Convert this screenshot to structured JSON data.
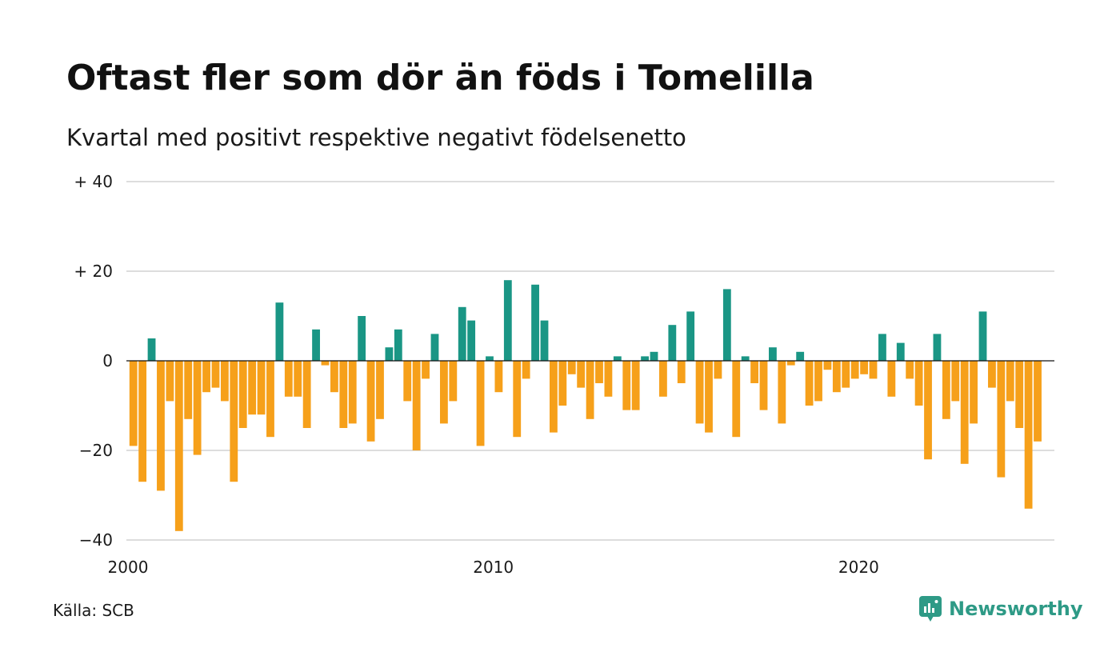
{
  "title": "Oftast fler som dör än föds i Tomelilla",
  "subtitle": "Kvartal med positivt respektive negativt födelsenetto",
  "source": "Källa: SCB",
  "brand": {
    "name": "Newsworthy",
    "icon": "newsworthy-logo-icon",
    "color": "#2e9a86"
  },
  "colors": {
    "positive": "#1a9685",
    "negative": "#f6a01a",
    "grid": "#dddddd",
    "zero": "#111111"
  },
  "chart_data": {
    "type": "bar",
    "y_tick_labels": [
      "+ 40",
      "+ 20",
      "0",
      "−20",
      "−40"
    ],
    "y_ticks": [
      40,
      20,
      0,
      -20,
      -40
    ],
    "ylim": [
      -40,
      40
    ],
    "x_tick_labels": [
      "2000",
      "2010",
      "2020"
    ],
    "x_ticks": [
      2000,
      2010,
      2020
    ],
    "xlim": [
      2000,
      2025.4
    ],
    "x_start": 2000,
    "values": [
      -19,
      -27,
      5,
      -29,
      -9,
      -38,
      -13,
      -21,
      -7,
      -6,
      -9,
      -27,
      -15,
      -12,
      -12,
      -17,
      13,
      -8,
      -8,
      -15,
      7,
      -1,
      -7,
      -15,
      -14,
      10,
      -18,
      -13,
      3,
      7,
      -9,
      -20,
      -4,
      6,
      -14,
      -9,
      12,
      9,
      -19,
      1,
      -7,
      18,
      -17,
      -4,
      17,
      9,
      -16,
      -10,
      -3,
      -6,
      -13,
      -5,
      -8,
      1,
      -11,
      -11,
      1,
      2,
      -8,
      8,
      -5,
      11,
      -14,
      -16,
      -4,
      16,
      -17,
      1,
      -5,
      -11,
      3,
      -14,
      -1,
      2,
      -10,
      -9,
      -2,
      -7,
      -6,
      -4,
      -3,
      -4,
      6,
      -8,
      4,
      -4,
      -10,
      -22,
      6,
      -13,
      -9,
      -23,
      -14,
      11,
      -6,
      -26,
      -9,
      -15,
      -33,
      -18
    ]
  }
}
